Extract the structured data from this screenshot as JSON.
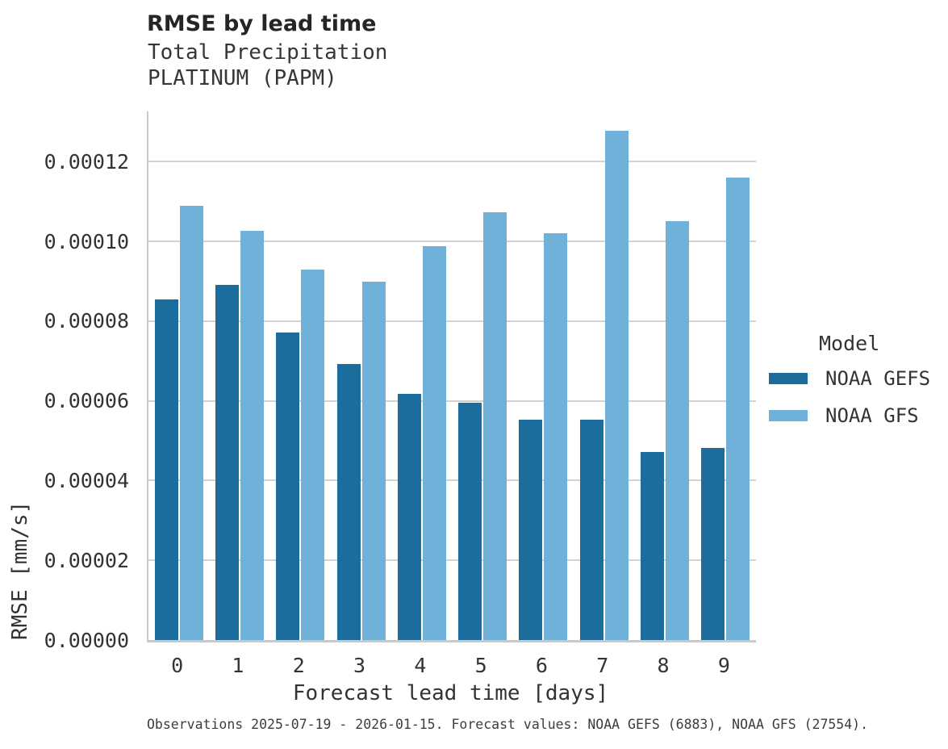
{
  "header": {
    "title": "RMSE by lead time",
    "subtitle_line1": "Total Precipitation",
    "subtitle_line2": "PLATINUM (PAPM)"
  },
  "chart_data": {
    "type": "bar",
    "grouped": true,
    "title": "RMSE by lead time",
    "subtitle": [
      "Total Precipitation",
      "PLATINUM (PAPM)"
    ],
    "xlabel": "Forecast lead time [days]",
    "ylabel": "RMSE [mm/s]",
    "categories": [
      "0",
      "1",
      "2",
      "3",
      "4",
      "5",
      "6",
      "7",
      "8",
      "9"
    ],
    "series": [
      {
        "name": "NOAA GEFS",
        "color": "#1b6d9d",
        "values": [
          8.55e-05,
          8.91e-05,
          7.72e-05,
          6.92e-05,
          6.18e-05,
          5.96e-05,
          5.53e-05,
          5.53e-05,
          4.71e-05,
          4.81e-05
        ]
      },
      {
        "name": "NOAA GFS",
        "color": "#6fb1d9",
        "values": [
          0.000109,
          0.0001026,
          9.29e-05,
          8.99e-05,
          9.88e-05,
          0.0001073,
          0.0001021,
          0.0001277,
          0.000105,
          0.0001161
        ]
      }
    ],
    "yticks": [
      {
        "value": 0.0,
        "label": "0.00000"
      },
      {
        "value": 2e-05,
        "label": "0.00002"
      },
      {
        "value": 4e-05,
        "label": "0.00004"
      },
      {
        "value": 6e-05,
        "label": "0.00006"
      },
      {
        "value": 8e-05,
        "label": "0.00008"
      },
      {
        "value": 0.0001,
        "label": "0.00010"
      },
      {
        "value": 0.00012,
        "label": "0.00012"
      }
    ],
    "ylim": [
      0,
      0.0001326
    ],
    "grid": "horizontal",
    "legend": {
      "title": "Model",
      "position": "right"
    }
  },
  "footer": {
    "caption": "Observations 2025-07-19 - 2026-01-15. Forecast values: NOAA GEFS (6883), NOAA GFS (27554)."
  }
}
